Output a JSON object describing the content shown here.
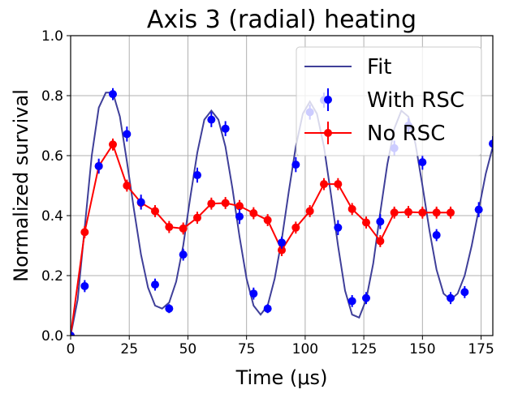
{
  "chart_data": {
    "type": "line",
    "title": "Axis 3 (radial) heating",
    "xlabel": "Time (μs)",
    "ylabel": "Normalized survival",
    "xlim": [
      0,
      180
    ],
    "ylim": [
      0,
      1.0
    ],
    "xticks": [
      0,
      25,
      50,
      75,
      100,
      125,
      150,
      175
    ],
    "yticks": [
      0.0,
      0.2,
      0.4,
      0.6,
      0.8,
      1.0
    ],
    "ytick_labels": [
      "0.0",
      "0.2",
      "0.4",
      "0.6",
      "0.8",
      "1.0"
    ],
    "grid": true,
    "legend_position": "top-right",
    "series": [
      {
        "name": "Fit",
        "kind": "line",
        "color": "#3f3f99",
        "x": [
          0,
          3,
          6,
          9,
          12,
          15,
          18,
          21,
          24,
          27,
          30,
          33,
          36,
          39,
          42,
          45,
          48,
          51,
          54,
          57,
          60,
          63,
          66,
          69,
          72,
          75,
          78,
          81,
          84,
          87,
          90,
          93,
          96,
          99,
          102,
          105,
          108,
          111,
          114,
          117,
          120,
          123,
          126,
          129,
          132,
          135,
          138,
          141,
          144,
          147,
          150,
          153,
          156,
          159,
          162,
          165,
          168,
          171,
          174,
          177,
          180
        ],
        "y": [
          0.0,
          0.12,
          0.36,
          0.6,
          0.76,
          0.81,
          0.81,
          0.73,
          0.58,
          0.42,
          0.27,
          0.16,
          0.1,
          0.09,
          0.11,
          0.18,
          0.3,
          0.46,
          0.61,
          0.72,
          0.75,
          0.72,
          0.63,
          0.49,
          0.33,
          0.19,
          0.1,
          0.07,
          0.1,
          0.19,
          0.32,
          0.48,
          0.63,
          0.74,
          0.78,
          0.74,
          0.63,
          0.47,
          0.3,
          0.15,
          0.07,
          0.06,
          0.12,
          0.24,
          0.41,
          0.57,
          0.69,
          0.75,
          0.73,
          0.64,
          0.5,
          0.35,
          0.22,
          0.14,
          0.12,
          0.14,
          0.2,
          0.3,
          0.42,
          0.54,
          0.63
        ]
      },
      {
        "name": "With RSC",
        "kind": "errorbar",
        "color": "#0000ff",
        "x": [
          0,
          6,
          12,
          18,
          24,
          30,
          36,
          42,
          48,
          54,
          60,
          66,
          72,
          78,
          84,
          90,
          96,
          102,
          108,
          114,
          120,
          126,
          132,
          138,
          144,
          150,
          156,
          162,
          168,
          174,
          180
        ],
        "y": [
          0.0,
          0.165,
          0.565,
          0.805,
          0.672,
          0.445,
          0.17,
          0.09,
          0.27,
          0.535,
          0.72,
          0.69,
          0.397,
          0.14,
          0.09,
          0.31,
          0.57,
          0.745,
          0.785,
          0.36,
          0.115,
          0.125,
          0.38,
          0.625,
          0.7,
          0.578,
          0.335,
          0.125,
          0.145,
          0.42,
          0.64
        ],
        "yerr": [
          0.02,
          0.02,
          0.025,
          0.02,
          0.025,
          0.025,
          0.02,
          0.015,
          0.02,
          0.025,
          0.025,
          0.025,
          0.025,
          0.02,
          0.015,
          0.02,
          0.025,
          0.025,
          0.025,
          0.025,
          0.02,
          0.02,
          0.025,
          0.025,
          0.025,
          0.025,
          0.02,
          0.02,
          0.02,
          0.025,
          0.025
        ]
      },
      {
        "name": "No RSC",
        "kind": "errorbar-line",
        "color": "#ff0000",
        "x": [
          0,
          6,
          12,
          18,
          24,
          30,
          36,
          42,
          48,
          54,
          60,
          66,
          72,
          78,
          84,
          90,
          96,
          102,
          108,
          114,
          120,
          126,
          132,
          138,
          144,
          150,
          156,
          162
        ],
        "y": [
          0.0,
          0.345,
          0.565,
          0.637,
          0.5,
          0.443,
          0.415,
          0.362,
          0.357,
          0.393,
          0.44,
          0.442,
          0.432,
          0.408,
          0.385,
          0.285,
          0.36,
          0.415,
          0.505,
          0.505,
          0.422,
          0.377,
          0.315,
          0.41,
          0.412,
          0.41,
          0.41,
          0.41
        ]
      }
    ]
  },
  "icons": {
    "series_marker": "filled-circle",
    "errorbar": "vertical-line"
  }
}
